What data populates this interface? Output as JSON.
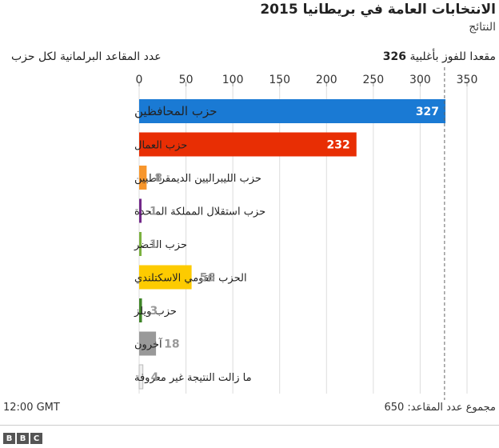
{
  "chart_data": {
    "type": "bar",
    "orientation": "horizontal",
    "title": "الانتخابات العامة في بريطانيا 2015",
    "subtitle": "النتائج",
    "xlabel": "عدد المقاعد البرلمانية لكل حزب",
    "xlim": [
      0,
      350
    ],
    "ticks": [
      0,
      50,
      100,
      150,
      200,
      250,
      300,
      350
    ],
    "majority": {
      "value": 326,
      "label_text": "مقعدا للفوز بأغلبية",
      "label_value": "326"
    },
    "categories": [
      "حزب المحافظين",
      "حزب العمال",
      "حزب الليبراليين الديمقراطيين",
      "حزب استقلال المملكة المتحدة",
      "حزب الخضر",
      "الحزب القومي الاسكتلندي",
      "حزب ويلز",
      "آخرون",
      "ما زالت النتيجة غير معروفة"
    ],
    "values": [
      327,
      232,
      8,
      1,
      1,
      56,
      3,
      18,
      4
    ],
    "colors": [
      "#1a7ad4",
      "#e82e04",
      "#f7962c",
      "#722889",
      "#7bb13f",
      "#fdcb00",
      "#3f8428",
      "#999999",
      "#eeeeee"
    ],
    "label_inside": [
      true,
      true,
      false,
      false,
      false,
      false,
      false,
      false,
      false
    ],
    "grid": true
  },
  "footer": {
    "time": "12:00 GMT",
    "total_seats": "مجموع عدد المقاعد: 650"
  },
  "brand": {
    "letters": [
      "B",
      "B",
      "C"
    ]
  }
}
